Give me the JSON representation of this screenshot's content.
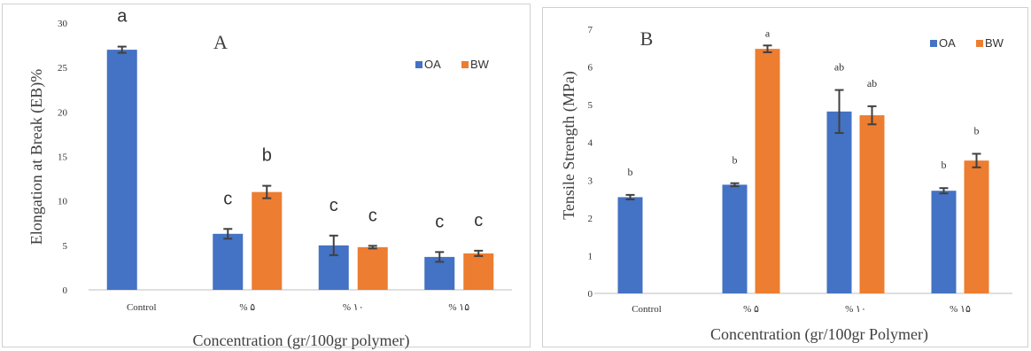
{
  "colors": {
    "OA": "#4472C4",
    "BW": "#ED7D31",
    "error_bar": "#404040",
    "axis": "#bfbfbf"
  },
  "chart_data": [
    {
      "type": "bar",
      "panel_label": "A",
      "xlabel": "Concentration (gr/100gr polymer)",
      "ylabel": "Elongation at Break (EB)%",
      "ylim": [
        0,
        30
      ],
      "yticks": [
        "0",
        "5",
        "10",
        "15",
        "20",
        "25",
        "30"
      ],
      "categories": [
        "Control",
        "% ۵",
        "% ۱۰",
        "% ۱۵"
      ],
      "legend_position": "top-right",
      "series": [
        {
          "name": "OA",
          "values": [
            27,
            6.3,
            5.0,
            3.7
          ],
          "errors": [
            0.35,
            0.55,
            1.1,
            0.55
          ],
          "labels": [
            "a",
            "c",
            "c",
            "c"
          ]
        },
        {
          "name": "BW",
          "values": [
            null,
            11.0,
            4.8,
            4.1
          ],
          "errors": [
            null,
            0.7,
            0.15,
            0.3
          ],
          "labels": [
            null,
            "b",
            "c",
            "c"
          ]
        }
      ]
    },
    {
      "type": "bar",
      "panel_label": "B",
      "xlabel": "Concentration (gr/100gr Polymer)",
      "ylabel": "Tensile Strength (MPa)",
      "ylim": [
        0,
        7
      ],
      "yticks": [
        "0",
        "1",
        "2",
        "3",
        "4",
        "5",
        "6",
        "7"
      ],
      "categories": [
        "Control",
        "% ۵",
        "% ۱۰",
        "% ۱۵"
      ],
      "legend_position": "top-right",
      "series": [
        {
          "name": "OA",
          "values": [
            2.55,
            2.88,
            4.82,
            2.72
          ],
          "errors": [
            0.06,
            0.04,
            0.57,
            0.07
          ],
          "labels": [
            "b",
            "b",
            "ab",
            "b"
          ]
        },
        {
          "name": "BW",
          "values": [
            null,
            6.48,
            4.72,
            3.52
          ],
          "errors": [
            null,
            0.09,
            0.24,
            0.18
          ],
          "labels": [
            null,
            "a",
            "ab",
            "b"
          ]
        }
      ]
    }
  ]
}
